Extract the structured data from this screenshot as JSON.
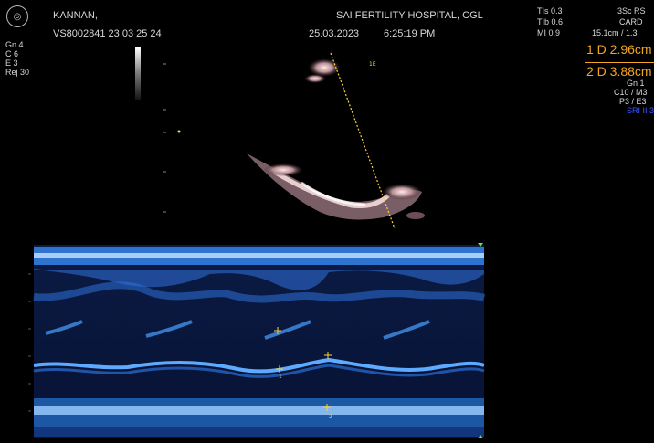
{
  "header": {
    "patient_name": "KANNAN,",
    "patient_id": "VS8002841 23 03 25 24",
    "hospital": "SAI FERTILITY HOSPITAL, CGL",
    "date": "25.03.2023",
    "time": "6:25:19 PM",
    "logo_icon": "probe-logo-icon"
  },
  "left_params": [
    "Gn  4",
    "C  6",
    "E  3",
    "Rej  30"
  ],
  "safety": [
    "TIs  0.3",
    "TIb  0.6",
    "MI   0.9"
  ],
  "probe": {
    "line1": "3Sc RS",
    "line2": "CARD",
    "line3": "15.1cm / 1.3"
  },
  "measurements": [
    {
      "label": "1 D 2.96cm"
    },
    {
      "label": "2 D 3.88cm"
    }
  ],
  "right_params": [
    "Gn  1",
    "C10 / M3",
    "P3 / E3"
  ],
  "right_blue": "SRI II 3",
  "cursor_label": "1E",
  "marker_labels": [
    "1",
    "2"
  ],
  "colors": {
    "accent_orange": "#f3a51f",
    "mmode_blue": "#2f8fff",
    "cursor_yellow": "#ffd23a"
  }
}
